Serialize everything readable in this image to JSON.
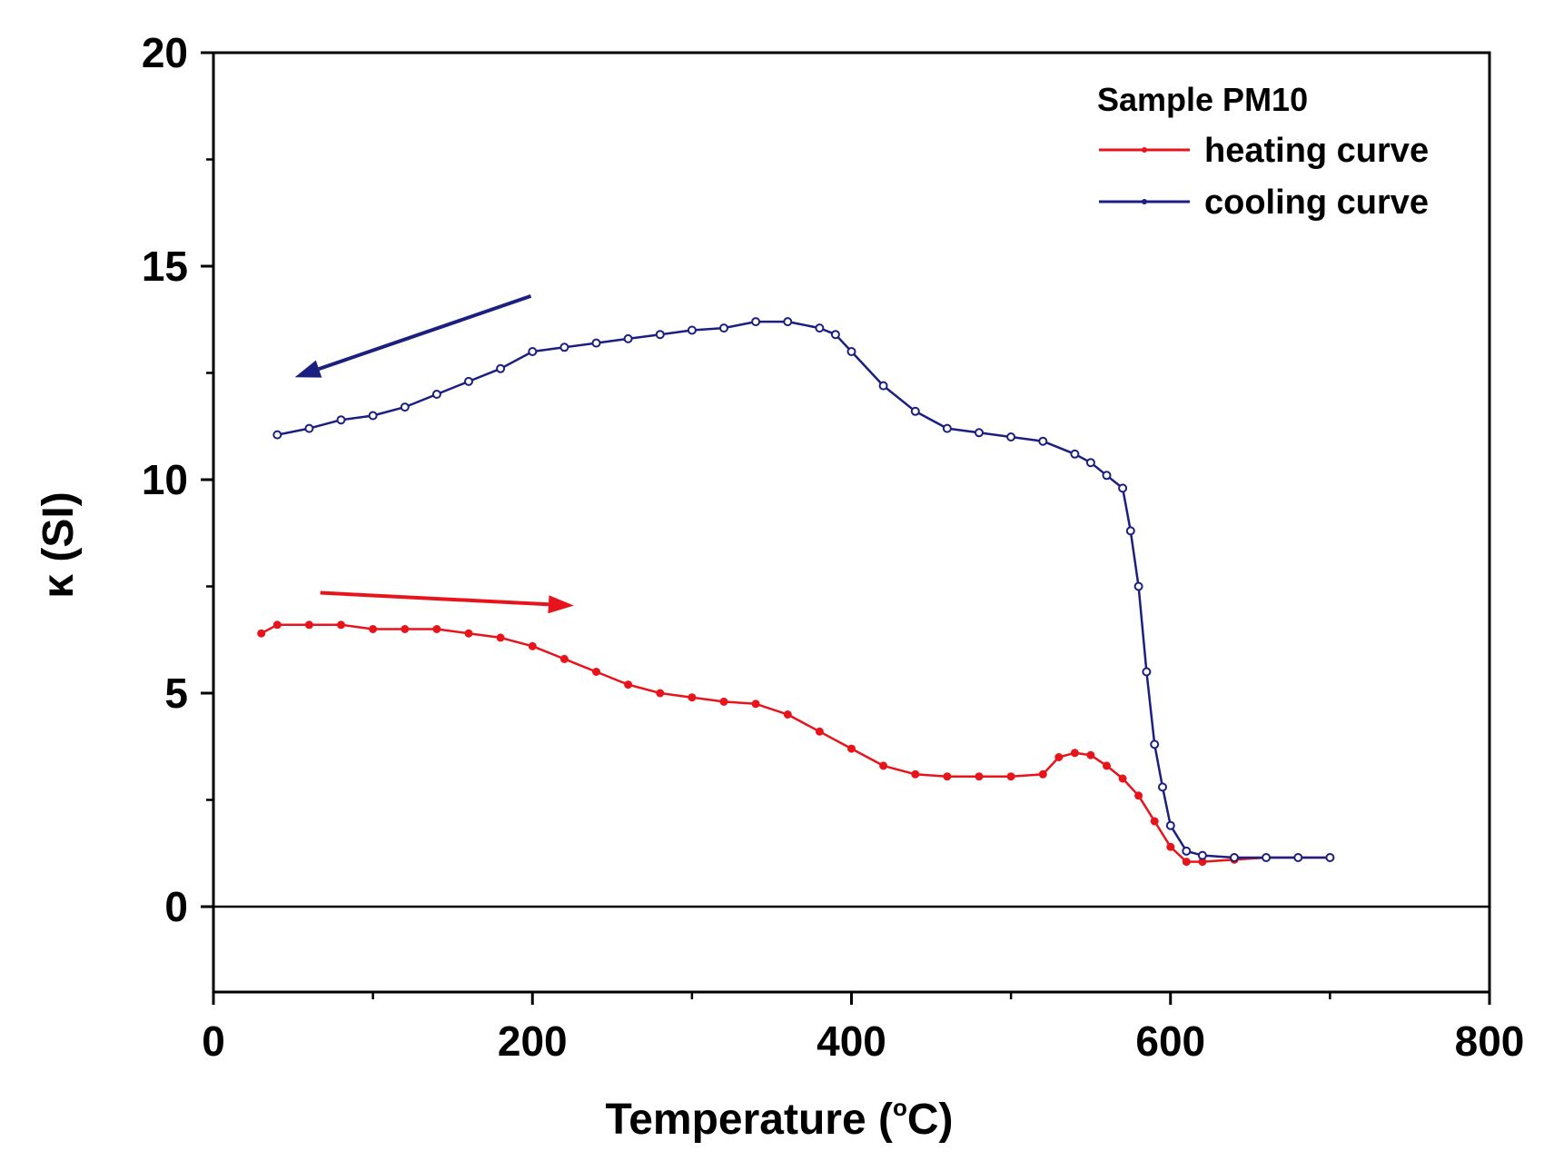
{
  "chart_data": {
    "type": "line",
    "title": "",
    "xlabel": "Temperature (°C)",
    "xlabel_parts": {
      "before": "Temperature (",
      "superscript": "o",
      "after": "C)"
    },
    "ylabel": "κ (SI)",
    "xlim": [
      0,
      800
    ],
    "ylim": [
      -2,
      20
    ],
    "xticks": [
      0,
      200,
      400,
      600,
      800
    ],
    "xtick_labels": [
      "0",
      "200",
      "400",
      "600",
      "800"
    ],
    "yticks": [
      0,
      5,
      10,
      15,
      20
    ],
    "ytick_labels": [
      "0",
      "5",
      "10",
      "15",
      "20"
    ],
    "x_minor_step": 100,
    "y_minor_step": 2.5,
    "zero_line": 0,
    "legend": {
      "title": "Sample PM10",
      "placement": "top-right",
      "entries": [
        {
          "label": "heating curve",
          "color": "#e8141b"
        },
        {
          "label": "cooling curve",
          "color": "#1a1f80"
        }
      ]
    },
    "series": [
      {
        "name": "heating curve",
        "color": "#e8141b",
        "marker": "filled-dot",
        "x": [
          30,
          40,
          60,
          80,
          100,
          120,
          140,
          160,
          180,
          200,
          220,
          240,
          260,
          280,
          300,
          320,
          340,
          360,
          380,
          400,
          420,
          440,
          460,
          480,
          500,
          520,
          530,
          540,
          550,
          560,
          570,
          580,
          590,
          600,
          610,
          620,
          640,
          660,
          680,
          700
        ],
        "y": [
          6.4,
          6.6,
          6.6,
          6.6,
          6.5,
          6.5,
          6.5,
          6.4,
          6.3,
          6.1,
          5.8,
          5.5,
          5.2,
          5.0,
          4.9,
          4.8,
          4.75,
          4.5,
          4.1,
          3.7,
          3.3,
          3.1,
          3.05,
          3.05,
          3.05,
          3.1,
          3.5,
          3.6,
          3.55,
          3.3,
          3.0,
          2.6,
          2.0,
          1.4,
          1.05,
          1.05,
          1.1,
          1.15,
          1.15,
          1.15
        ]
      },
      {
        "name": "cooling curve",
        "color": "#1a1f80",
        "marker": "open-circle",
        "x": [
          700,
          680,
          660,
          640,
          620,
          610,
          600,
          595,
          590,
          585,
          580,
          575,
          570,
          560,
          550,
          540,
          520,
          500,
          480,
          460,
          440,
          420,
          400,
          390,
          380,
          360,
          340,
          320,
          300,
          280,
          260,
          240,
          220,
          200,
          180,
          160,
          140,
          120,
          100,
          80,
          60,
          40
        ],
        "y": [
          1.15,
          1.15,
          1.15,
          1.15,
          1.2,
          1.3,
          1.9,
          2.8,
          3.8,
          5.5,
          7.5,
          8.8,
          9.8,
          10.1,
          10.4,
          10.6,
          10.9,
          11.0,
          11.1,
          11.2,
          11.6,
          12.2,
          13.0,
          13.4,
          13.55,
          13.7,
          13.7,
          13.55,
          13.5,
          13.4,
          13.3,
          13.2,
          13.1,
          13.0,
          12.6,
          12.3,
          12.0,
          11.7,
          11.5,
          11.4,
          11.2,
          11.05
        ]
      }
    ],
    "annotations": [
      {
        "type": "arrow",
        "color": "#1a1f80",
        "meaning": "cooling direction",
        "from": [
          199,
          14.3
        ],
        "to": [
          51,
          12.4
        ]
      },
      {
        "type": "arrow",
        "color": "#e8141b",
        "meaning": "heating direction",
        "from": [
          67,
          7.35
        ],
        "to": [
          226,
          7.05
        ]
      }
    ]
  }
}
